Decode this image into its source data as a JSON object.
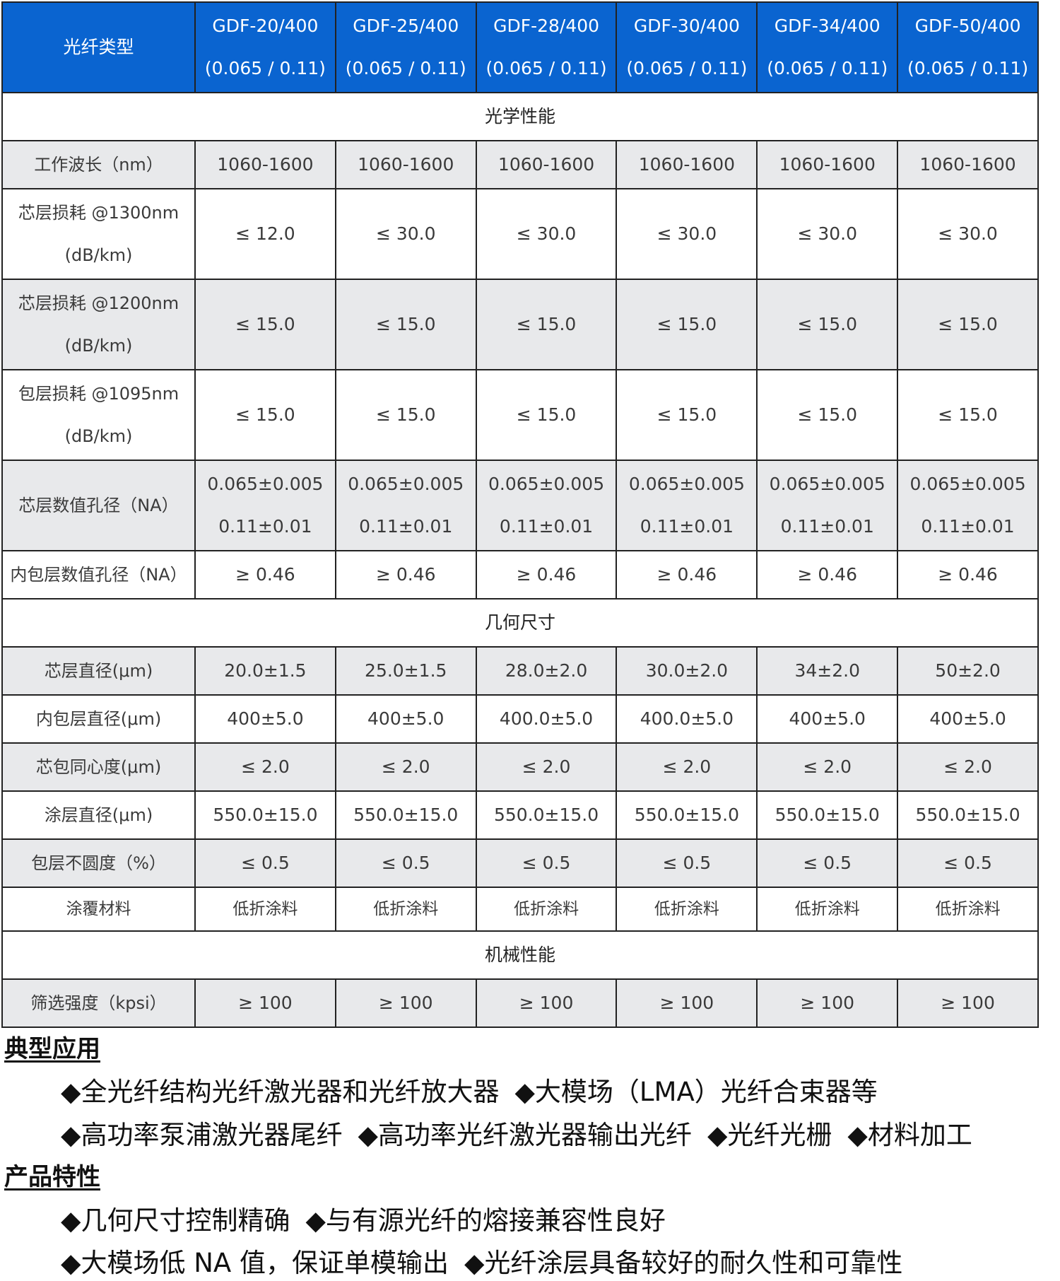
{
  "table": {
    "header": {
      "label": "光纤类型",
      "models": [
        {
          "name": "GDF-20/400",
          "na": "(0.065 / 0.11)"
        },
        {
          "name": "GDF-25/400",
          "na": "(0.065 / 0.11)"
        },
        {
          "name": "GDF-28/400",
          "na": "(0.065 / 0.11)"
        },
        {
          "name": "GDF-30/400",
          "na": "(0.065 / 0.11)"
        },
        {
          "name": "GDF-34/400",
          "na": "(0.065 / 0.11)"
        },
        {
          "name": "GDF-50/400",
          "na": "(0.065 / 0.11)"
        }
      ]
    },
    "sections": {
      "optical": "光学性能",
      "geometry": "几何尺寸",
      "mechanical": "机械性能"
    },
    "rows": {
      "wavelength": {
        "label": "工作波长（nm）",
        "values": [
          "1060-1600",
          "1060-1600",
          "1060-1600",
          "1060-1600",
          "1060-1600",
          "1060-1600"
        ]
      },
      "loss1300": {
        "label": "芯层损耗 @1300nm",
        "unit": "(dB/km)",
        "values": [
          "≤ 12.0",
          "≤ 30.0",
          "≤ 30.0",
          "≤ 30.0",
          "≤ 30.0",
          "≤ 30.0"
        ]
      },
      "loss1200": {
        "label": "芯层损耗 @1200nm",
        "unit": "(dB/km)",
        "values": [
          "≤ 15.0",
          "≤ 15.0",
          "≤ 15.0",
          "≤ 15.0",
          "≤ 15.0",
          "≤ 15.0"
        ]
      },
      "loss1095": {
        "label": "包层损耗 @1095nm",
        "unit": "(dB/km)",
        "values": [
          "≤ 15.0",
          "≤ 15.0",
          "≤ 15.0",
          "≤ 15.0",
          "≤ 15.0",
          "≤ 15.0"
        ]
      },
      "core_na": {
        "label": "芯层数值孔径（NA）",
        "values": [
          [
            "0.065±0.005",
            "0.11±0.01"
          ],
          [
            "0.065±0.005",
            "0.11±0.01"
          ],
          [
            "0.065±0.005",
            "0.11±0.01"
          ],
          [
            "0.065±0.005",
            "0.11±0.01"
          ],
          [
            "0.065±0.005",
            "0.11±0.01"
          ],
          [
            "0.065±0.005",
            "0.11±0.01"
          ]
        ]
      },
      "clad_na": {
        "label": "内包层数值孔径（NA）",
        "values": [
          "≥ 0.46",
          "≥ 0.46",
          "≥ 0.46",
          "≥ 0.46",
          "≥ 0.46",
          "≥ 0.46"
        ]
      },
      "core_dia": {
        "label": "芯层直径(μm)",
        "values": [
          "20.0±1.5",
          "25.0±1.5",
          "28.0±2.0",
          "30.0±2.0",
          "34±2.0",
          "50±2.0"
        ]
      },
      "clad_dia": {
        "label": "内包层直径(μm)",
        "values": [
          "400±5.0",
          "400±5.0",
          "400.0±5.0",
          "400.0±5.0",
          "400±5.0",
          "400±5.0"
        ]
      },
      "concentricity": {
        "label": "芯包同心度(μm)",
        "values": [
          "≤ 2.0",
          "≤ 2.0",
          "≤ 2.0",
          "≤ 2.0",
          "≤ 2.0",
          "≤ 2.0"
        ]
      },
      "coat_dia": {
        "label": "涂层直径(μm)",
        "values": [
          "550.0±15.0",
          "550.0±15.0",
          "550.0±15.0",
          "550.0±15.0",
          "550.0±15.0",
          "550.0±15.0"
        ]
      },
      "noncirc": {
        "label": "包层不圆度（%）",
        "values": [
          "≤ 0.5",
          "≤ 0.5",
          "≤ 0.5",
          "≤ 0.5",
          "≤ 0.5",
          "≤ 0.5"
        ]
      },
      "coating": {
        "label": "涂覆材料",
        "values": [
          "低折涂料",
          "低折涂料",
          "低折涂料",
          "低折涂料",
          "低折涂料",
          "低折涂料"
        ]
      },
      "proof": {
        "label": "筛选强度（kpsi）",
        "values": [
          "≥ 100",
          "≥ 100",
          "≥ 100",
          "≥ 100",
          "≥ 100",
          "≥ 100"
        ]
      }
    }
  },
  "applications": {
    "title": "典型应用",
    "lines": [
      [
        "◆全光纤结构光纤激光器和光纤放大器",
        "◆大模场（LMA）光纤合束器等"
      ],
      [
        "◆高功率泵浦激光器尾纤",
        "◆高功率光纤激光器输出光纤",
        "◆光纤光栅",
        "◆材料加工"
      ]
    ]
  },
  "features": {
    "title": "产品特性",
    "lines": [
      [
        "◆几何尺寸控制精确",
        "◆与有源光纤的熔接兼容性良好"
      ],
      [
        "◆大模场低 NA 值，保证单模输出",
        "◆光纤涂层具备较好的耐久性和可靠性"
      ]
    ]
  },
  "colors": {
    "header_bg": "#0a64d0",
    "shaded_row": "#e8e9eb"
  }
}
